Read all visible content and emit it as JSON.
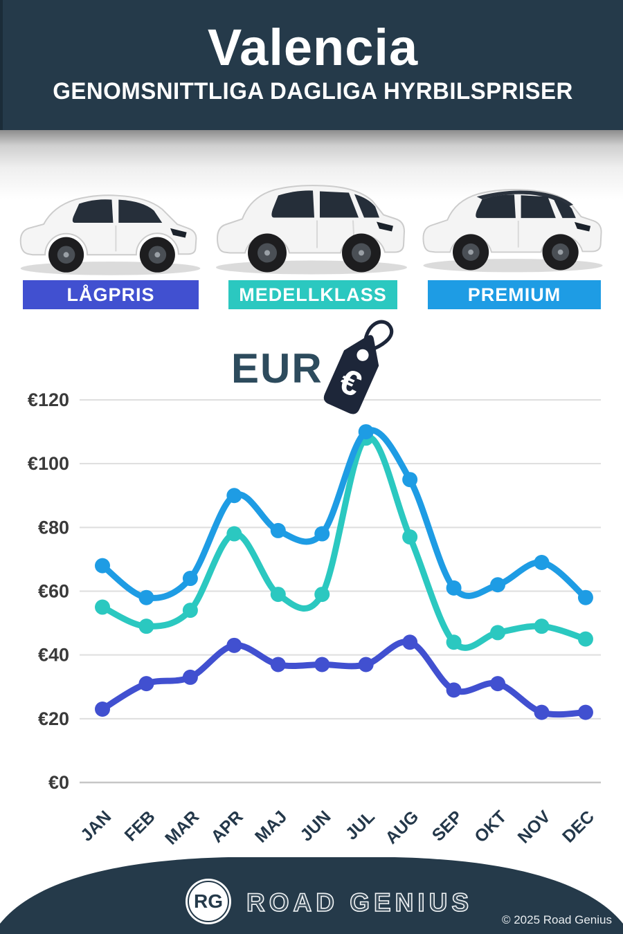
{
  "header": {
    "title": "Valencia",
    "subtitle": "GENOMSNITTLIGA DAGLIGA HYRBILSPRISER"
  },
  "categories": [
    {
      "label": "LÅGPRIS",
      "color": "#4150d0"
    },
    {
      "label": "MEDELLKLASS",
      "color": "#2bc8c0"
    },
    {
      "label": "PREMIUM",
      "color": "#1e9ce4"
    }
  ],
  "currency": {
    "label": "EUR",
    "tag_symbol": "€"
  },
  "chart_data": {
    "type": "line",
    "title": "Valencia – genomsnittliga dagliga hyrbilspriser (EUR)",
    "categories": [
      "JAN",
      "FEB",
      "MAR",
      "APR",
      "MAJ",
      "JUN",
      "JUL",
      "AUG",
      "SEP",
      "OKT",
      "NOV",
      "DEC"
    ],
    "series": [
      {
        "name": "LÅGPRIS",
        "color": "#4150d0",
        "values": [
          23,
          31,
          33,
          43,
          37,
          37,
          37,
          44,
          29,
          31,
          22,
          22
        ]
      },
      {
        "name": "MEDELLKLASS",
        "color": "#2bc8c0",
        "values": [
          55,
          49,
          54,
          78,
          59,
          59,
          108,
          77,
          44,
          47,
          49,
          45
        ]
      },
      {
        "name": "PREMIUM",
        "color": "#1e9ce4",
        "values": [
          68,
          58,
          64,
          90,
          79,
          78,
          110,
          95,
          61,
          62,
          69,
          58
        ]
      }
    ],
    "ylim": [
      0,
      120
    ],
    "y_ticks": [
      {
        "value": 120,
        "label": "€120"
      },
      {
        "value": 100,
        "label": "€100"
      },
      {
        "value": 80,
        "label": "€80"
      },
      {
        "value": 60,
        "label": "€60"
      },
      {
        "value": 40,
        "label": "€40"
      },
      {
        "value": 20,
        "label": "€20"
      },
      {
        "value": 0,
        "label": "€0"
      }
    ],
    "grid": true,
    "legend_position": "category-buttons-above-chart"
  },
  "footer": {
    "logo_text": "RG",
    "brand": "ROAD GENIUS",
    "copyright": "© 2025 Road Genius"
  }
}
